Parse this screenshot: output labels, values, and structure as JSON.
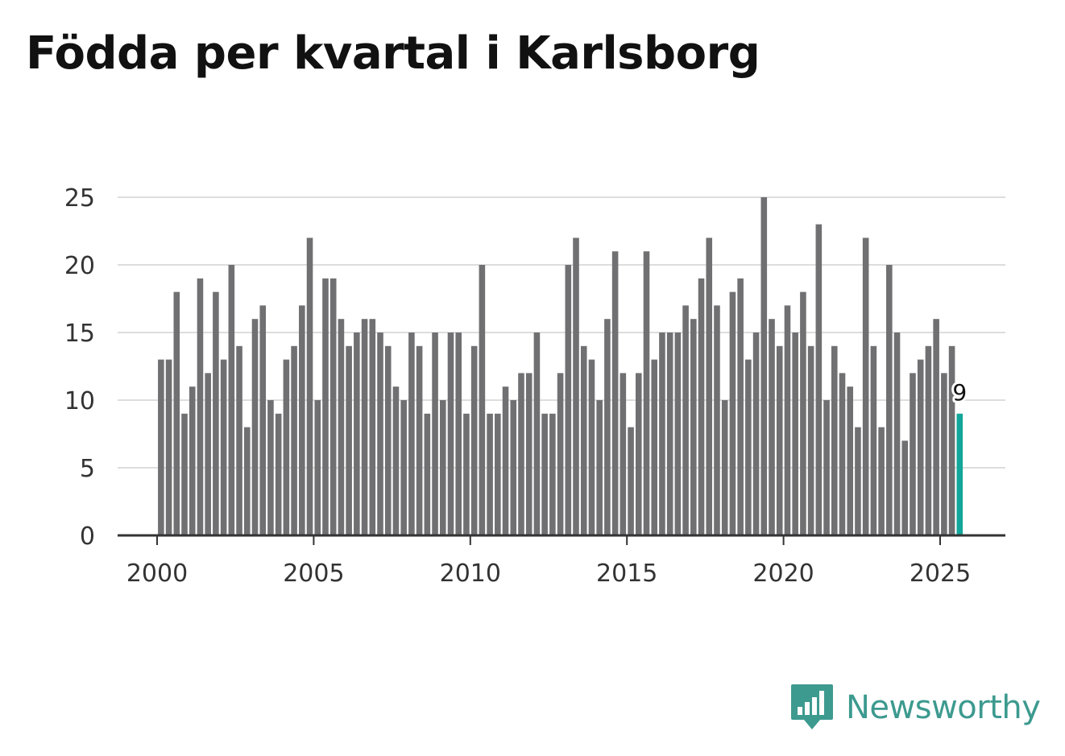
{
  "title": "Födda per kvartal i Karlsborg",
  "brand": {
    "name": "Newsworthy",
    "icon": "newsworthy-logo-icon",
    "color": "#3d9a8f"
  },
  "colors": {
    "bar": "#707073",
    "highlight": "#13a69a",
    "grid": "#dddddd",
    "axis": "#333333"
  },
  "chart_data": {
    "type": "bar",
    "title": "Födda per kvartal i Karlsborg",
    "xlabel": "",
    "ylabel": "",
    "ylim": [
      0,
      25
    ],
    "yticks": [
      0,
      5,
      10,
      15,
      20,
      25
    ],
    "xticks": [
      "2000",
      "2005",
      "2010",
      "2015",
      "2020",
      "2025"
    ],
    "grid": true,
    "start_year": 2000,
    "highlight_label": "9",
    "values": [
      13,
      13,
      18,
      9,
      11,
      19,
      12,
      18,
      13,
      20,
      14,
      8,
      16,
      17,
      10,
      9,
      13,
      14,
      17,
      22,
      10,
      19,
      19,
      16,
      14,
      15,
      16,
      16,
      15,
      14,
      11,
      10,
      15,
      14,
      9,
      15,
      10,
      15,
      15,
      9,
      14,
      20,
      9,
      9,
      11,
      10,
      12,
      12,
      15,
      9,
      9,
      12,
      20,
      22,
      14,
      13,
      10,
      16,
      21,
      12,
      8,
      12,
      21,
      13,
      15,
      15,
      15,
      17,
      16,
      19,
      22,
      17,
      10,
      18,
      19,
      13,
      15,
      25,
      16,
      14,
      17,
      15,
      18,
      14,
      23,
      10,
      14,
      12,
      11,
      8,
      22,
      14,
      8,
      20,
      15,
      7,
      12,
      13,
      14,
      16,
      12,
      14,
      9
    ]
  }
}
